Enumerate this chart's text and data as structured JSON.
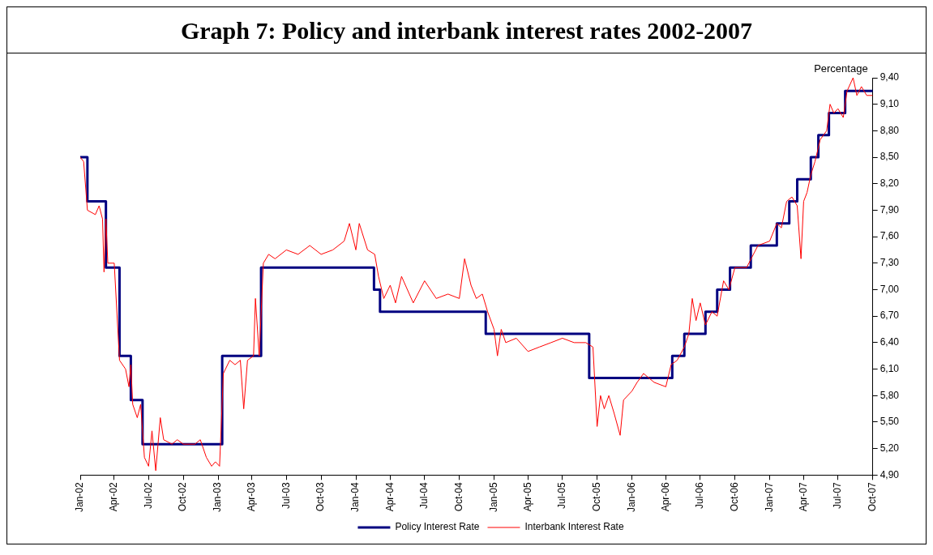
{
  "chart_data": {
    "type": "line",
    "title": "Graph 7: Policy and interbank interest rates 2002-2007",
    "ylabel": "Percentage",
    "legend": "bottom",
    "xlim": [
      "2002-01-01",
      "2007-10-01"
    ],
    "xticks": [
      {
        "value": "2002-01-01",
        "label": "Jan-02"
      },
      {
        "value": "2002-04-01",
        "label": "Apr-02"
      },
      {
        "value": "2002-07-01",
        "label": "Jul-02"
      },
      {
        "value": "2002-10-01",
        "label": "Oct-02"
      },
      {
        "value": "2003-01-01",
        "label": "Jan-03"
      },
      {
        "value": "2003-04-01",
        "label": "Apr-03"
      },
      {
        "value": "2003-07-01",
        "label": "Jul-03"
      },
      {
        "value": "2003-10-01",
        "label": "Oct-03"
      },
      {
        "value": "2004-01-01",
        "label": "Jan-04"
      },
      {
        "value": "2004-04-01",
        "label": "Apr-04"
      },
      {
        "value": "2004-07-01",
        "label": "Jul-04"
      },
      {
        "value": "2004-10-01",
        "label": "Oct-04"
      },
      {
        "value": "2005-01-01",
        "label": "Jan-05"
      },
      {
        "value": "2005-04-01",
        "label": "Apr-05"
      },
      {
        "value": "2005-07-01",
        "label": "Jul-05"
      },
      {
        "value": "2005-10-01",
        "label": "Oct-05"
      },
      {
        "value": "2006-01-01",
        "label": "Jan-06"
      },
      {
        "value": "2006-04-01",
        "label": "Apr-06"
      },
      {
        "value": "2006-07-01",
        "label": "Jul-06"
      },
      {
        "value": "2006-10-01",
        "label": "Oct-06"
      },
      {
        "value": "2007-01-01",
        "label": "Jan-07"
      },
      {
        "value": "2007-04-01",
        "label": "Apr-07"
      },
      {
        "value": "2007-07-01",
        "label": "Jul-07"
      },
      {
        "value": "2007-10-01",
        "label": "Oct-07"
      }
    ],
    "ylim": [
      4.9,
      9.4
    ],
    "yticks": [
      {
        "value": 4.9,
        "label": "4,90"
      },
      {
        "value": 5.2,
        "label": "5,20"
      },
      {
        "value": 5.5,
        "label": "5,50"
      },
      {
        "value": 5.8,
        "label": "5,80"
      },
      {
        "value": 6.1,
        "label": "6,10"
      },
      {
        "value": 6.4,
        "label": "6,40"
      },
      {
        "value": 6.7,
        "label": "6,70"
      },
      {
        "value": 7.0,
        "label": "7,00"
      },
      {
        "value": 7.3,
        "label": "7,30"
      },
      {
        "value": 7.6,
        "label": "7,60"
      },
      {
        "value": 7.9,
        "label": "7,90"
      },
      {
        "value": 8.2,
        "label": "8,20"
      },
      {
        "value": 8.5,
        "label": "8,50"
      },
      {
        "value": 8.8,
        "label": "8,80"
      },
      {
        "value": 9.1,
        "label": "9,10"
      },
      {
        "value": 9.4,
        "label": "9,40"
      }
    ],
    "series": [
      {
        "name": "Policy Interest Rate",
        "type": "step",
        "color": "#000080",
        "x": [
          "2002-01-01",
          "2002-01-20",
          "2002-03-10",
          "2002-04-15",
          "2002-05-15",
          "2002-06-15",
          "2003-01-12",
          "2003-04-25",
          "2004-02-18",
          "2004-03-05",
          "2004-12-10",
          "2005-09-10",
          "2006-04-18",
          "2006-05-20",
          "2006-07-15",
          "2006-08-15",
          "2006-09-18",
          "2006-11-12",
          "2007-01-20",
          "2007-02-22",
          "2007-03-15",
          "2007-04-20",
          "2007-05-10",
          "2007-06-07",
          "2007-07-20",
          "2007-10-01"
        ],
        "values": [
          8.5,
          8.0,
          7.25,
          6.25,
          5.75,
          5.25,
          6.25,
          7.25,
          7.0,
          6.75,
          6.5,
          6.0,
          6.25,
          6.5,
          6.75,
          7.0,
          7.25,
          7.5,
          7.75,
          8.0,
          8.25,
          8.5,
          8.75,
          9.0,
          9.25,
          9.25
        ]
      },
      {
        "name": "Interbank Interest Rate",
        "type": "line",
        "color": "#ff0000",
        "x": [
          "2002-01-01",
          "2002-01-10",
          "2002-01-20",
          "2002-02-10",
          "2002-02-20",
          "2002-03-01",
          "2002-03-05",
          "2002-03-10",
          "2002-03-15",
          "2002-04-01",
          "2002-04-15",
          "2002-05-01",
          "2002-05-10",
          "2002-05-15",
          "2002-05-20",
          "2002-06-01",
          "2002-06-10",
          "2002-06-20",
          "2002-07-01",
          "2002-07-10",
          "2002-07-20",
          "2002-08-01",
          "2002-08-10",
          "2002-09-01",
          "2002-09-15",
          "2002-10-01",
          "2002-11-01",
          "2002-11-15",
          "2002-12-01",
          "2002-12-15",
          "2002-12-25",
          "2003-01-05",
          "2003-01-15",
          "2003-02-01",
          "2003-02-15",
          "2003-03-01",
          "2003-03-10",
          "2003-03-20",
          "2003-04-05",
          "2003-04-10",
          "2003-04-20",
          "2003-05-01",
          "2003-05-15",
          "2003-06-01",
          "2003-07-01",
          "2003-08-01",
          "2003-09-01",
          "2003-10-01",
          "2003-11-01",
          "2003-12-01",
          "2003-12-15",
          "2004-01-01",
          "2004-01-10",
          "2004-02-01",
          "2004-02-20",
          "2004-03-01",
          "2004-03-15",
          "2004-04-01",
          "2004-04-15",
          "2004-05-01",
          "2004-06-01",
          "2004-07-01",
          "2004-08-01",
          "2004-09-01",
          "2004-10-01",
          "2004-10-15",
          "2004-11-01",
          "2004-11-15",
          "2004-12-01",
          "2004-12-15",
          "2005-01-01",
          "2005-01-10",
          "2005-01-20",
          "2005-02-01",
          "2005-03-01",
          "2005-04-01",
          "2005-05-01",
          "2005-06-01",
          "2005-07-01",
          "2005-08-01",
          "2005-09-01",
          "2005-09-20",
          "2005-10-01",
          "2005-10-10",
          "2005-10-20",
          "2005-11-01",
          "2005-11-15",
          "2005-12-01",
          "2005-12-10",
          "2006-01-01",
          "2006-01-15",
          "2006-02-01",
          "2006-03-01",
          "2006-04-01",
          "2006-04-15",
          "2006-05-01",
          "2006-05-20",
          "2006-06-01",
          "2006-06-10",
          "2006-06-20",
          "2006-07-01",
          "2006-07-15",
          "2006-08-01",
          "2006-08-15",
          "2006-09-01",
          "2006-09-15",
          "2006-10-01",
          "2006-11-01",
          "2006-12-01",
          "2007-01-01",
          "2007-01-20",
          "2007-02-01",
          "2007-02-15",
          "2007-03-01",
          "2007-03-15",
          "2007-03-25",
          "2007-04-01",
          "2007-04-10",
          "2007-04-20",
          "2007-05-01",
          "2007-05-15",
          "2007-06-01",
          "2007-06-10",
          "2007-06-20",
          "2007-07-01",
          "2007-07-15",
          "2007-07-25",
          "2007-08-10",
          "2007-08-20",
          "2007-09-01",
          "2007-09-15",
          "2007-10-01"
        ],
        "values": [
          8.5,
          8.45,
          7.9,
          7.85,
          7.95,
          7.8,
          7.2,
          7.8,
          7.3,
          7.3,
          6.2,
          6.1,
          5.9,
          6.15,
          5.7,
          5.55,
          5.7,
          5.1,
          5.0,
          5.4,
          4.95,
          5.55,
          5.3,
          5.25,
          5.3,
          5.25,
          5.25,
          5.3,
          5.1,
          5.0,
          5.05,
          5.0,
          6.05,
          6.2,
          6.15,
          6.2,
          5.65,
          6.2,
          6.25,
          6.9,
          6.25,
          7.3,
          7.4,
          7.35,
          7.45,
          7.4,
          7.5,
          7.4,
          7.45,
          7.55,
          7.75,
          7.45,
          7.75,
          7.45,
          7.4,
          7.15,
          6.9,
          7.05,
          6.85,
          7.15,
          6.85,
          7.1,
          6.9,
          6.95,
          6.9,
          7.35,
          7.05,
          6.9,
          6.95,
          6.75,
          6.55,
          6.25,
          6.55,
          6.4,
          6.45,
          6.3,
          6.35,
          6.4,
          6.45,
          6.4,
          6.4,
          6.35,
          5.45,
          5.8,
          5.65,
          5.8,
          5.6,
          5.35,
          5.75,
          5.85,
          5.95,
          6.05,
          5.95,
          5.9,
          6.15,
          6.2,
          6.35,
          6.5,
          6.9,
          6.65,
          6.85,
          6.6,
          6.75,
          6.7,
          7.1,
          7.0,
          7.25,
          7.25,
          7.5,
          7.55,
          7.75,
          7.7,
          8.0,
          8.05,
          7.95,
          7.35,
          8.0,
          8.1,
          8.3,
          8.45,
          8.7,
          8.8,
          9.1,
          9.0,
          9.05,
          8.95,
          9.25,
          9.4,
          9.2,
          9.3,
          9.2,
          9.2
        ]
      }
    ]
  }
}
